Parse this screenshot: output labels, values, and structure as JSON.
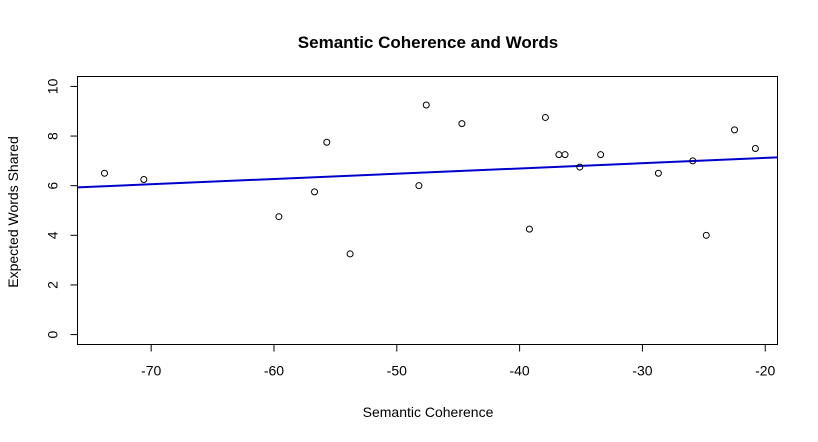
{
  "chart_data": {
    "type": "scatter",
    "title": "Semantic Coherence and Words",
    "xlabel": "Semantic Coherence",
    "ylabel": "Expected Words Shared",
    "xlim": [
      -76,
      -19
    ],
    "ylim": [
      -0.4,
      10.4
    ],
    "xticks": [
      -70,
      -60,
      -50,
      -40,
      -30,
      -20
    ],
    "yticks": [
      0,
      2,
      4,
      6,
      8,
      10
    ],
    "xtick_labels": [
      "-70",
      "-60",
      "-50",
      "-40",
      "-30",
      "-20"
    ],
    "ytick_labels": [
      "0",
      "2",
      "4",
      "6",
      "8",
      "10"
    ],
    "grid": false,
    "points": [
      {
        "x": -73.8,
        "y": 6.5
      },
      {
        "x": -70.6,
        "y": 6.25
      },
      {
        "x": -59.6,
        "y": 4.75
      },
      {
        "x": -56.7,
        "y": 5.75
      },
      {
        "x": -55.7,
        "y": 7.75
      },
      {
        "x": -53.8,
        "y": 3.25
      },
      {
        "x": -48.2,
        "y": 6.0
      },
      {
        "x": -47.6,
        "y": 9.25
      },
      {
        "x": -44.7,
        "y": 8.5
      },
      {
        "x": -39.2,
        "y": 4.25
      },
      {
        "x": -37.9,
        "y": 8.75
      },
      {
        "x": -36.8,
        "y": 7.25
      },
      {
        "x": -36.3,
        "y": 7.25
      },
      {
        "x": -35.1,
        "y": 6.75
      },
      {
        "x": -33.4,
        "y": 7.25
      },
      {
        "x": -28.7,
        "y": 6.5
      },
      {
        "x": -25.9,
        "y": 7.0
      },
      {
        "x": -24.8,
        "y": 4.0
      },
      {
        "x": -22.5,
        "y": 8.25
      },
      {
        "x": -20.8,
        "y": 7.5
      }
    ],
    "fit_line": {
      "x": [
        -76,
        -19
      ],
      "y": [
        5.93,
        7.14
      ],
      "color": "#0000cc"
    }
  }
}
